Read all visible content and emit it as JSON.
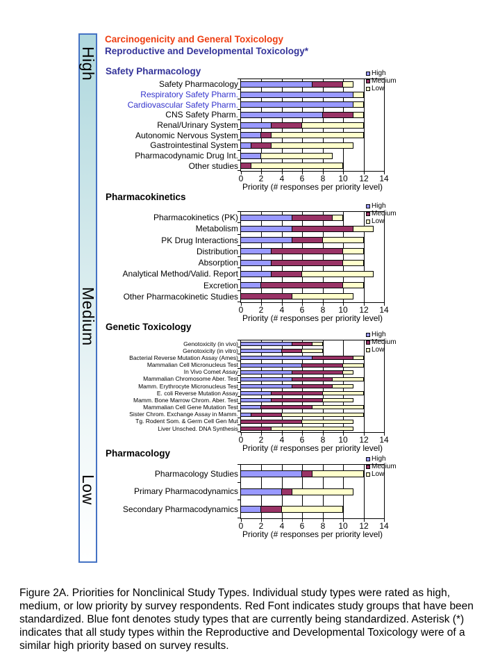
{
  "scale_bar": {
    "labels": [
      "High",
      "Medium",
      "Low"
    ]
  },
  "header": {
    "line1": "Carcinogenicity and General Toxicology",
    "line2": "Reproductive and Developmental Toxicology*"
  },
  "colors": {
    "high": "#9999FF",
    "medium": "#993366",
    "low": "#FFFFCC",
    "header_line1": "#EE3D11",
    "header_line2": "#333399",
    "section_blue": "#333399",
    "label_blue": "#3333CC",
    "scale_border": "#4472C4"
  },
  "chart_data": [
    {
      "type": "bar",
      "stacked": true,
      "orientation": "horizontal",
      "section": "Safety Pharmacology",
      "section_color": "#333399",
      "categories": [
        "Safety Pharmacology",
        "Respiratory Safety Pharm.",
        "Cardiovascular Safety Pharm.",
        "CNS Safety Pharm.",
        "Renal/Urinary System",
        "Autonomic Nervous System",
        "Gastrointestinal System",
        "Pharmacodynamic Drug Int.",
        "Other studies"
      ],
      "label_colors": [
        "#000000",
        "#3333CC",
        "#3333CC",
        "#000000",
        "#000000",
        "#000000",
        "#000000",
        "#000000",
        "#000000"
      ],
      "series": [
        {
          "name": "High",
          "color": "#9999FF",
          "values": [
            7,
            11,
            11,
            8,
            3,
            2,
            1,
            2,
            0
          ]
        },
        {
          "name": "Medium",
          "color": "#993366",
          "values": [
            3,
            0,
            0,
            3,
            3,
            1,
            2,
            0,
            1
          ]
        },
        {
          "name": "Low",
          "color": "#FFFFCC",
          "values": [
            1,
            1,
            1,
            1,
            6,
            9,
            8,
            7,
            9
          ]
        }
      ],
      "xlim": [
        0,
        14
      ],
      "xticks": [
        0,
        2,
        4,
        6,
        8,
        10,
        12,
        14
      ],
      "xlabel": "Priority (# responses per priority level)",
      "legend": [
        "High",
        "Medium",
        "Low"
      ],
      "legend_position": "top-right",
      "grid": "vertical-major"
    },
    {
      "type": "bar",
      "stacked": true,
      "orientation": "horizontal",
      "section": "Pharmacokinetics",
      "section_color": "#000000",
      "categories": [
        "Pharmacokinetics (PK)",
        "Metabolism",
        "PK Drug Interactions",
        "Distribution",
        "Absorption",
        "Analytical Method/Valid. Report",
        "Excretion",
        "Other Pharmacokinetic Studies"
      ],
      "label_colors": [
        "#000000",
        "#000000",
        "#000000",
        "#000000",
        "#000000",
        "#000000",
        "#000000",
        "#000000"
      ],
      "series": [
        {
          "name": "High",
          "color": "#9999FF",
          "values": [
            5,
            5,
            5,
            3,
            3,
            3,
            2,
            0
          ]
        },
        {
          "name": "Medium",
          "color": "#993366",
          "values": [
            4,
            6,
            3,
            7,
            7,
            3,
            8,
            5
          ]
        },
        {
          "name": "Low",
          "color": "#FFFFCC",
          "values": [
            1,
            2,
            4,
            2,
            2,
            7,
            2,
            6
          ]
        }
      ],
      "xlim": [
        0,
        14
      ],
      "xticks": [
        0,
        2,
        4,
        6,
        8,
        10,
        12,
        14
      ],
      "xlabel": "Priority (# responses per priority level)",
      "legend": [
        "High",
        "Medium",
        "Low"
      ],
      "legend_position": "top-right",
      "grid": "vertical-major"
    },
    {
      "type": "bar",
      "stacked": true,
      "orientation": "horizontal",
      "section": "Genetic Toxicology",
      "section_color": "#000000",
      "categories": [
        "Genotoxicity (in vivo)",
        "Genotoxicity (in vitro)",
        "Bacterial Reverse Mutation Assay (Ames)",
        "Mammalian Cell Micronucleus Test",
        "In Vivo Comet Assay",
        "Mammalian Chromosome Aber. Test",
        "Mamm. Erythrocyte Micronucleus Test",
        "E. coli Reverse Mutation Assay",
        "Mamm. Bone Marrow Chrom. Aber. Test",
        "Mammalian Cell Gene Mutation Test",
        "Sister Chrom. Exchange Assay in Mamm.",
        "Tg. Rodent Som. & Germ Cell Gen Mut",
        "Liver Unsched. DNA Synthesis"
      ],
      "label_colors": [
        "#000000",
        "#000000",
        "#000000",
        "#000000",
        "#000000",
        "#000000",
        "#000000",
        "#000000",
        "#000000",
        "#000000",
        "#000000",
        "#000000",
        "#000000"
      ],
      "series": [
        {
          "name": "High",
          "color": "#9999FF",
          "values": [
            5,
            4,
            7,
            6,
            5,
            5,
            5,
            3,
            3,
            2,
            1,
            0,
            0
          ]
        },
        {
          "name": "Medium",
          "color": "#993366",
          "values": [
            2,
            2,
            4,
            4,
            5,
            4,
            4,
            5,
            5,
            5,
            3,
            6,
            3
          ]
        },
        {
          "name": "Low",
          "color": "#FFFFCC",
          "values": [
            1,
            2,
            1,
            2,
            1,
            3,
            2,
            4,
            3,
            5,
            8,
            5,
            8
          ]
        }
      ],
      "xlim": [
        0,
        14
      ],
      "xticks": [
        0,
        2,
        4,
        6,
        8,
        10,
        12,
        14
      ],
      "xlabel": "Priority (# responses per priority level)",
      "legend": [
        "High",
        "Medium",
        "Low"
      ],
      "legend_position": "top-right",
      "grid": "vertical-major"
    },
    {
      "type": "bar",
      "stacked": true,
      "orientation": "horizontal",
      "section": "Pharmacology",
      "section_color": "#000000",
      "categories": [
        "Pharmacology Studies",
        "Primary Pharmacodynamics",
        "Secondary Pharmacodynamics"
      ],
      "label_colors": [
        "#000000",
        "#000000",
        "#000000"
      ],
      "series": [
        {
          "name": "High",
          "color": "#9999FF",
          "values": [
            6,
            4,
            2
          ]
        },
        {
          "name": "Medium",
          "color": "#993366",
          "values": [
            1,
            1,
            2
          ]
        },
        {
          "name": "Low",
          "color": "#FFFFCC",
          "values": [
            5,
            6,
            6
          ]
        }
      ],
      "xlim": [
        0,
        14
      ],
      "xticks": [
        0,
        2,
        4,
        6,
        8,
        10,
        12,
        14
      ],
      "xlabel": "Priority (# responses per priority level)",
      "legend": [
        "High",
        "Medium",
        "Low"
      ],
      "legend_position": "top-right",
      "grid": "vertical-major"
    }
  ],
  "caption": "Figure 2A. Priorities for Nonclinical Study Types. Individual study types were rated as high, medium, or low priority by survey respondents. Red Font indicates study groups that have been standardized.  Blue font denotes study types that are currently being standardized. Asterisk (*) indicates that all study types within the Reproductive and Developmental Toxicology were of a similar high priority based on survey results."
}
